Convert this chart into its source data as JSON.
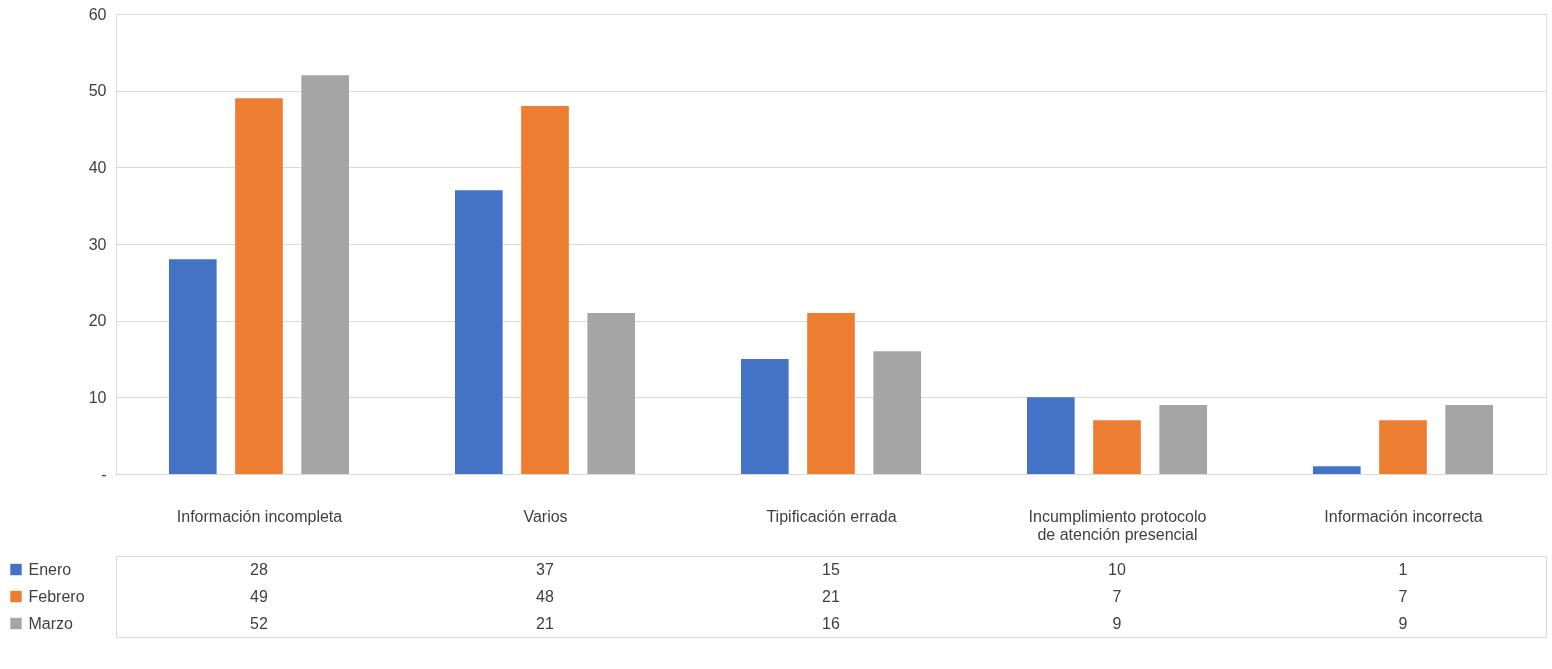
{
  "chart_data": {
    "type": "bar",
    "categories": [
      "Información incompleta",
      "Varios",
      "Tipificación errada",
      "Incumplimiento protocolo de atención presencial",
      "Información incorrecta"
    ],
    "series": [
      {
        "name": "Enero",
        "color": "#4472c4",
        "values": [
          28,
          37,
          15,
          10,
          1
        ]
      },
      {
        "name": "Febrero",
        "color": "#ed7d31",
        "values": [
          49,
          48,
          21,
          7,
          7
        ]
      },
      {
        "name": "Marzo",
        "color": "#a5a5a5",
        "values": [
          52,
          21,
          16,
          9,
          9
        ]
      }
    ],
    "ylim": [
      0,
      60
    ],
    "yticks": [
      {
        "value": 0,
        "label": "-"
      },
      10,
      20,
      30,
      40,
      50,
      60
    ],
    "grid": "y",
    "legend": "bottom",
    "data_labels": true
  }
}
